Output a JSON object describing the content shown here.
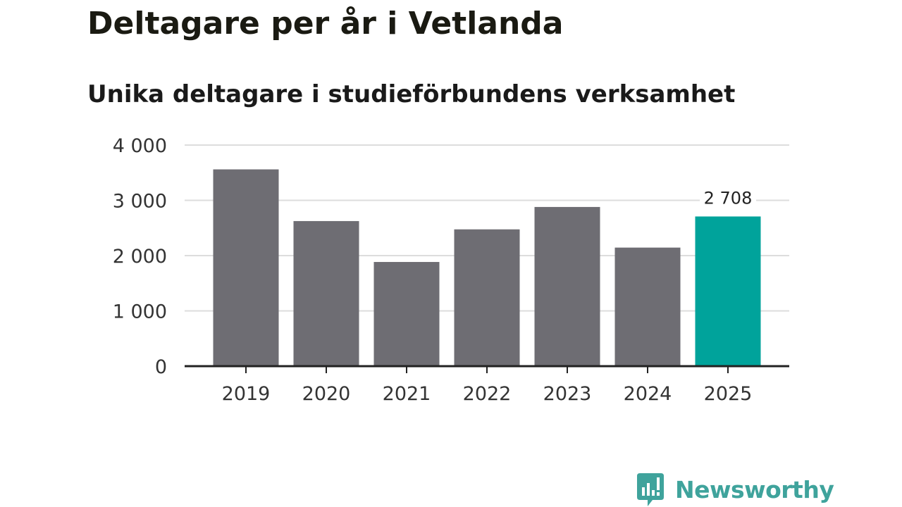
{
  "header": {
    "title": "Deltagare per år i Vetlanda",
    "subtitle": "Unika deltagare i studieförbundens verksamhet"
  },
  "chart_data": {
    "type": "bar",
    "title": "Deltagare per år i Vetlanda",
    "subtitle": "Unika deltagare i studieförbundens verksamhet",
    "xlabel": "",
    "ylabel": "",
    "categories": [
      "2019",
      "2020",
      "2021",
      "2022",
      "2023",
      "2024",
      "2025"
    ],
    "values": [
      3560,
      2625,
      1885,
      2475,
      2880,
      2145,
      2708
    ],
    "highlight_index": 6,
    "data_labels": [
      {
        "index": 6,
        "text": "2 708"
      }
    ],
    "ylim": [
      0,
      4000
    ],
    "yticks": [
      0,
      1000,
      2000,
      3000,
      4000
    ],
    "ytick_labels": [
      "0",
      "1 000",
      "2 000",
      "3 000",
      "4 000"
    ],
    "grid": true,
    "colors": {
      "bar": "#6e6d73",
      "highlight": "#00a39b",
      "grid": "#dddddd",
      "axis": "#222222"
    }
  },
  "logo": {
    "name": "Newsworthy",
    "icon": "newsworthy-chart-bubble-icon",
    "color": "#3fa39c"
  }
}
